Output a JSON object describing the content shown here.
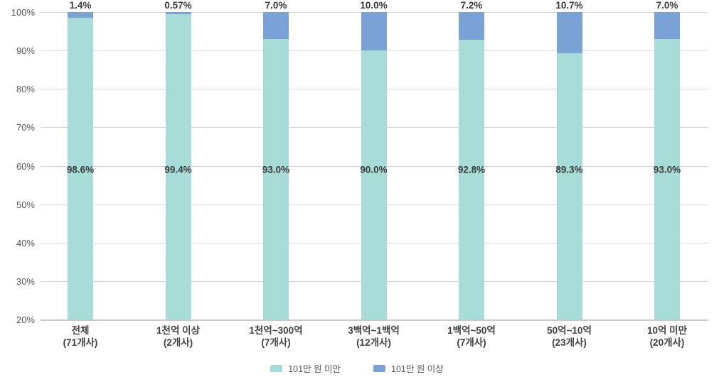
{
  "colors": {
    "below_series": "#a7dcd9",
    "above_series": "#7aa2d6",
    "grid": "#d9d9d9",
    "axis_line": "#c9c9c9",
    "value_label_text": "#3a3a3a",
    "axis_text": "#595959",
    "category_text": "#424242",
    "background": "#ffffff"
  },
  "chart_data": {
    "type": "bar",
    "subtype": "stacked-percent-column",
    "grid": true,
    "legend_position": "bottom",
    "ylim": [
      20,
      100
    ],
    "yticks": [
      {
        "value": 100,
        "label": "100%"
      },
      {
        "value": 90,
        "label": "90%"
      },
      {
        "value": 80,
        "label": "80%"
      },
      {
        "value": 70,
        "label": "70%"
      },
      {
        "value": 60,
        "label": "60%"
      },
      {
        "value": 50,
        "label": "50%"
      },
      {
        "value": 40,
        "label": "40%"
      },
      {
        "value": 30,
        "label": "30%"
      },
      {
        "value": 20,
        "label": "20%"
      }
    ],
    "categories": [
      {
        "line1": "전체",
        "line2": "(71개사)"
      },
      {
        "line1": "1천억 이상",
        "line2": "(2개사)"
      },
      {
        "line1": "1천억~300억",
        "line2": "(7개사)"
      },
      {
        "line1": "3백억~1백억",
        "line2": "(12개사)"
      },
      {
        "line1": "1백억~50억",
        "line2": "(7개사)"
      },
      {
        "line1": "50억~10억",
        "line2": "(23개사)"
      },
      {
        "line1": "10억 미만",
        "line2": "(20개사)"
      }
    ],
    "series": [
      {
        "name": "101만 원 미만",
        "color_key": "below_series",
        "values": [
          98.6,
          99.4,
          93.0,
          90.0,
          92.8,
          89.3,
          93.0
        ],
        "labels": [
          "98.6%",
          "99.4%",
          "93.0%",
          "90.0%",
          "92.8%",
          "89.3%",
          "93.0%"
        ]
      },
      {
        "name": "101만 원 이상",
        "color_key": "above_series",
        "values": [
          1.4,
          0.57,
          7.0,
          10.0,
          7.2,
          10.7,
          7.0
        ],
        "labels": [
          "1.4%",
          "0.57%",
          "7.0%",
          "10.0%",
          "7.2%",
          "10.7%",
          "7.0%"
        ]
      }
    ]
  }
}
